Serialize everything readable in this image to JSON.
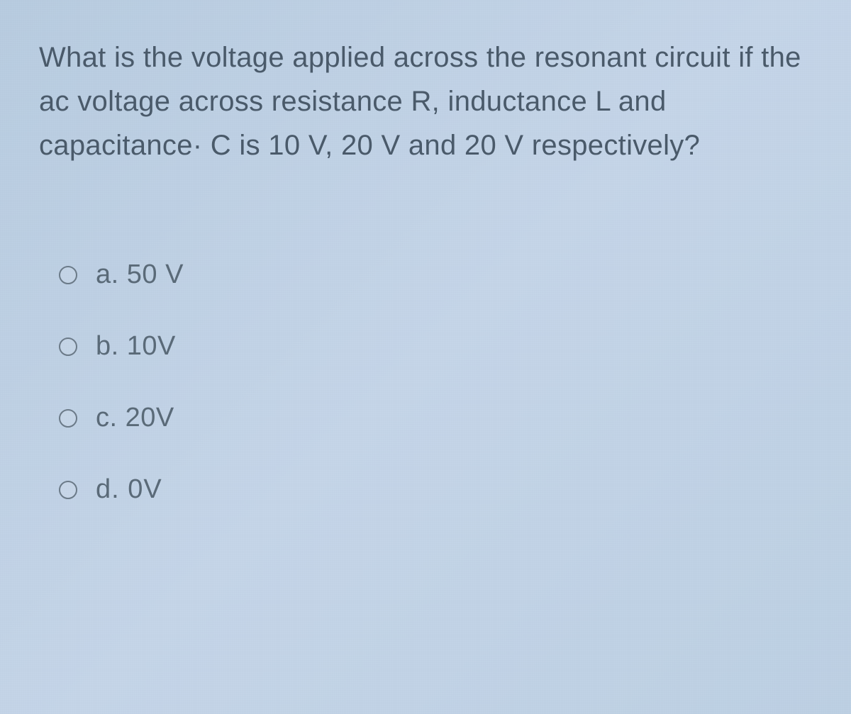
{
  "question": {
    "text": "What is the voltage applied across the resonant circuit if the ac voltage across resistance R, inductance L and capacitance· C is 10 V, 20 V and 20 V respectively?",
    "text_color": "#4a5a6a",
    "fontsize": 40,
    "line_height": 1.55
  },
  "options": [
    {
      "letter": "a.",
      "value": "50 V"
    },
    {
      "letter": "b.",
      "value": "10V"
    },
    {
      "letter": "c.",
      "value": "20V"
    },
    {
      "letter": "d.",
      "value": "0V"
    }
  ],
  "styling": {
    "background_gradient_start": "#b8cce0",
    "background_gradient_end": "#bdd0e3",
    "radio_border_color": "#6b7a88",
    "radio_size": 26,
    "option_text_color": "#5a6a78",
    "option_fontsize": 38,
    "option_spacing": 58
  }
}
